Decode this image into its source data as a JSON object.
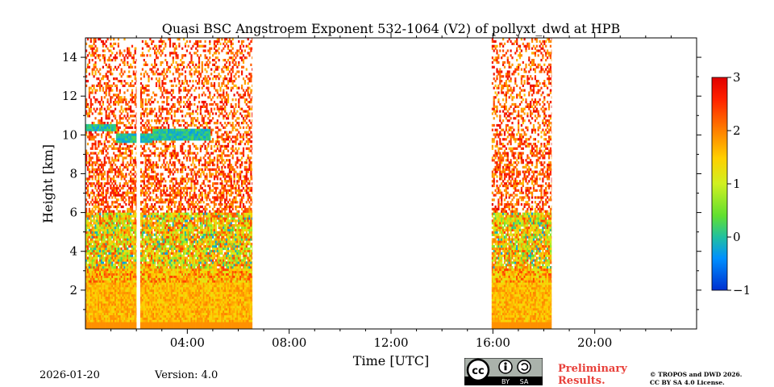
{
  "chart_data": {
    "type": "heatmap",
    "title": "Quasi BSC Angstroem Exponent 532-1064 (V2) of pollyxt_dwd at HPB",
    "xlabel": "Time [UTC]",
    "ylabel": "Height [km]",
    "xlim_hours": [
      0,
      24
    ],
    "ylim_km": [
      0,
      15
    ],
    "x_ticks": [
      {
        "value": 4,
        "label": "04:00"
      },
      {
        "value": 8,
        "label": "08:00"
      },
      {
        "value": 12,
        "label": "12:00"
      },
      {
        "value": 16,
        "label": "16:00"
      },
      {
        "value": 20,
        "label": "20:00"
      }
    ],
    "y_ticks": [
      {
        "value": 2,
        "label": "2"
      },
      {
        "value": 4,
        "label": "4"
      },
      {
        "value": 6,
        "label": "6"
      },
      {
        "value": 8,
        "label": "8"
      },
      {
        "value": 10,
        "label": "10"
      },
      {
        "value": 12,
        "label": "12"
      },
      {
        "value": 14,
        "label": "14"
      }
    ],
    "colorbar": {
      "min": -1,
      "max": 3,
      "colormap": [
        "#0030d0",
        "#0090ff",
        "#20c0a0",
        "#60e030",
        "#d0f020",
        "#ffd000",
        "#ff8000",
        "#ff2000",
        "#e00000"
      ],
      "ticks": [
        {
          "value": 3,
          "label": "3"
        },
        {
          "value": 2,
          "label": "2"
        },
        {
          "value": 1,
          "label": "1"
        },
        {
          "value": 0,
          "label": "0"
        },
        {
          "value": -1,
          "label": "−1"
        }
      ]
    },
    "data_segments": [
      {
        "start_hour": 0.0,
        "end_hour": 2.0
      },
      {
        "start_hour": 2.15,
        "end_hour": 6.55
      },
      {
        "start_hour": 15.95,
        "end_hour": 18.3
      }
    ],
    "features": [
      {
        "name": "cirrus layer",
        "start_hour": 0.0,
        "end_hour": 4.9,
        "bottom_km": 9.5,
        "top_km": 10.5,
        "approx_value": -0.3
      },
      {
        "name": "boundary layer",
        "start_hour": 0.0,
        "end_hour": 18.3,
        "bottom_km": 0.0,
        "top_km": 2.5,
        "approx_value": 1.5
      }
    ]
  },
  "footer": {
    "date": "2026-01-20",
    "version": "Version: 4.0",
    "preliminary_line1": "Preliminary",
    "preliminary_line2": "Results.",
    "copyright_line1": "© TROPOS and DWD 2026.",
    "copyright_line2": "CC BY SA 4.0 License.",
    "license_badge": {
      "cc": "cc",
      "by": "BY",
      "sa": "SA"
    }
  }
}
